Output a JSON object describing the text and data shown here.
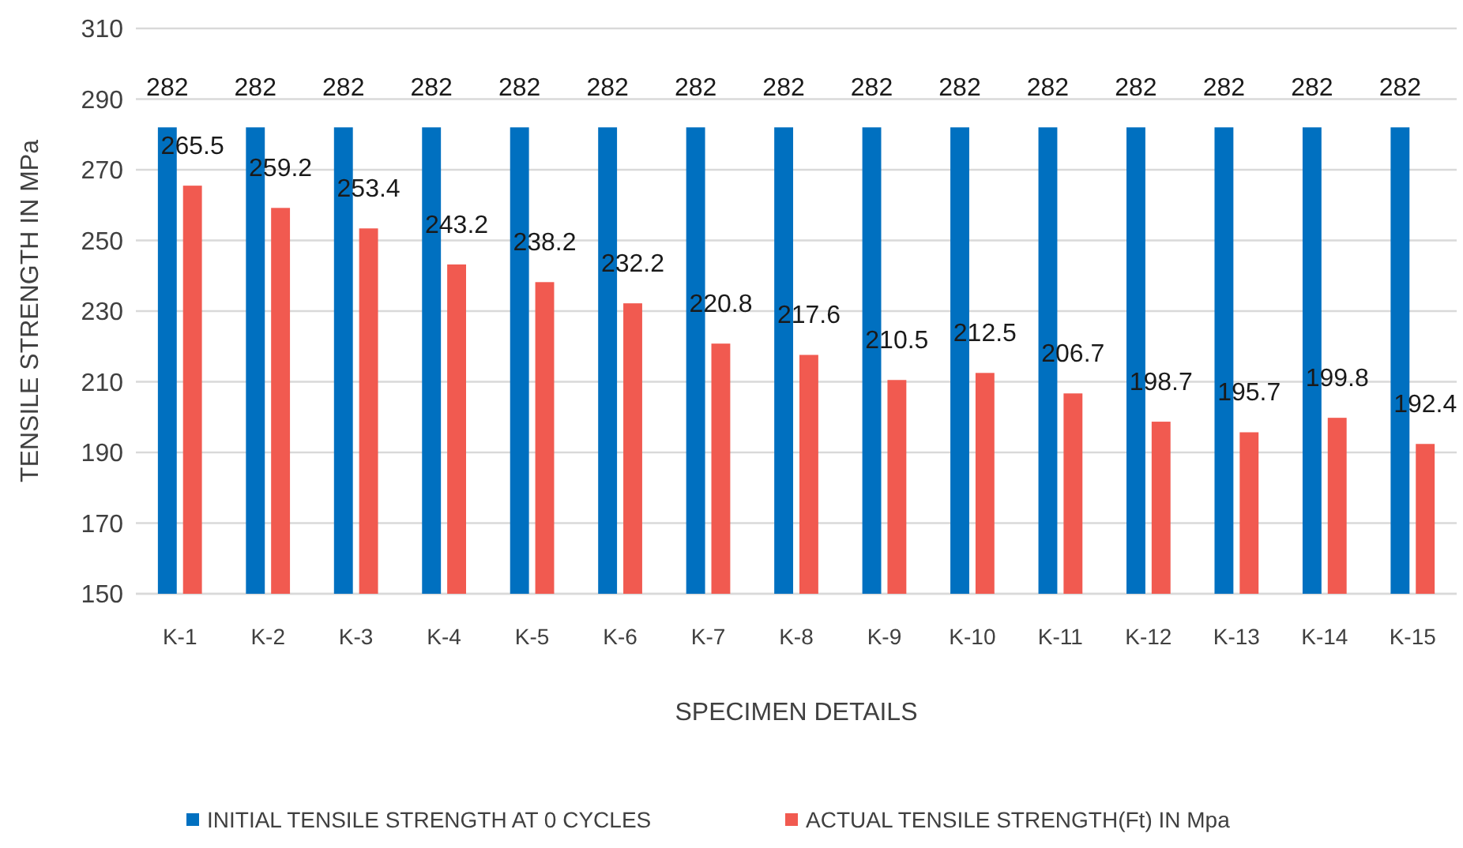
{
  "chart_data": {
    "type": "bar",
    "xlabel": "SPECIMEN DETAILS",
    "ylabel": "TENSILE STRENGTH IN MPa",
    "categories": [
      "K-1",
      "K-2",
      "K-3",
      "K-4",
      "K-5",
      "K-6",
      "K-7",
      "K-8",
      "K-9",
      "K-10",
      "K-11",
      "K-12",
      "K-13",
      "K-14",
      "K-15"
    ],
    "series": [
      {
        "name": "INITIAL TENSILE STRENGTH AT 0 CYCLES",
        "color": "#0070c0",
        "values": [
          282,
          282,
          282,
          282,
          282,
          282,
          282,
          282,
          282,
          282,
          282,
          282,
          282,
          282,
          282
        ]
      },
      {
        "name": "ACTUAL TENSILE STRENGTH(Ft) IN Mpa",
        "color": "#f15a50",
        "values": [
          265.5,
          259.2,
          253.4,
          243.2,
          238.2,
          232.2,
          220.8,
          217.6,
          210.5,
          212.5,
          206.7,
          198.7,
          195.7,
          199.8,
          192.4
        ]
      }
    ],
    "ylim": [
      150,
      310
    ],
    "yticks": [
      150,
      170,
      190,
      210,
      230,
      250,
      270,
      290,
      310
    ],
    "grid": "y",
    "legend": "bottom",
    "data_labels": true
  }
}
